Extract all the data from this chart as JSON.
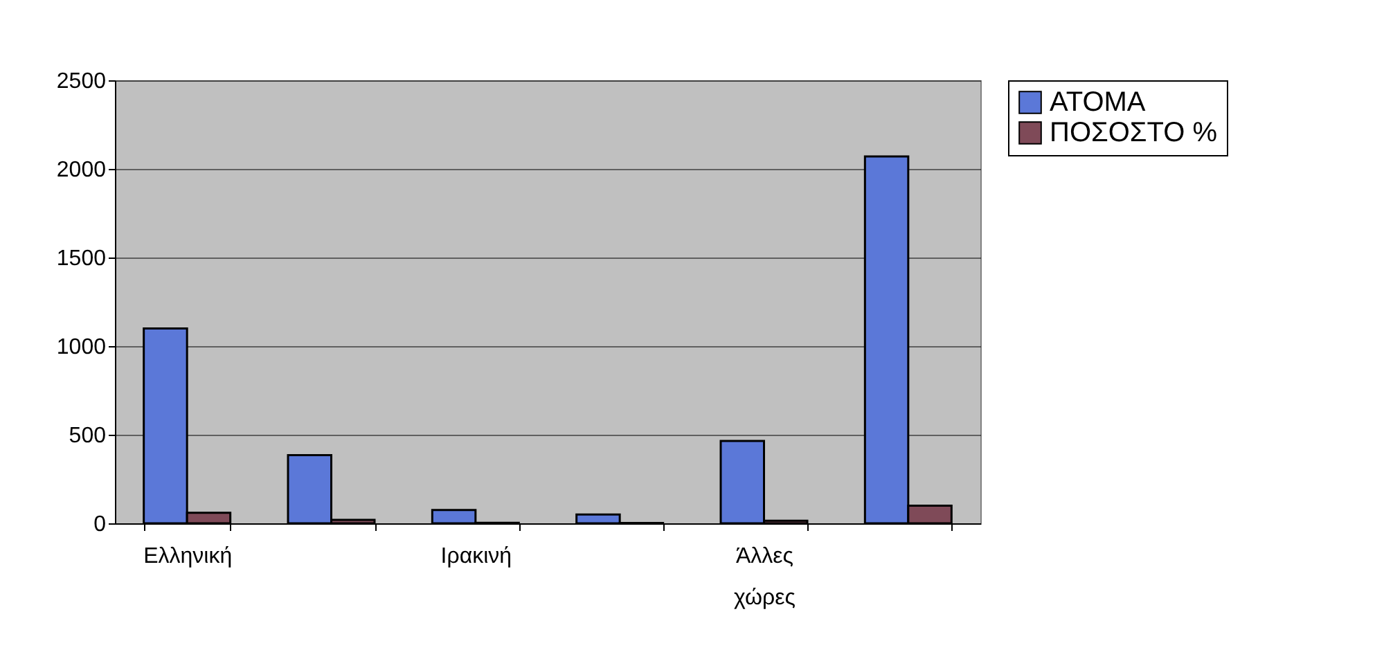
{
  "chart_data": {
    "type": "bar",
    "categories": [
      "Ελληνική",
      null,
      "Ιρακινή",
      null,
      "Άλλες χώρες",
      null
    ],
    "series": [
      {
        "name": "ΑΤΟΜΑ",
        "color": "#5b78d8",
        "values": [
          1100,
          385,
          75,
          50,
          465,
          2070
        ]
      },
      {
        "name": "ΠΟΣΟΣΤΟ %",
        "color": "#7f4a58",
        "values": [
          60,
          20,
          3,
          2,
          15,
          100
        ]
      }
    ],
    "ylim": [
      0,
      2500
    ],
    "yticks": [
      0,
      500,
      1000,
      1500,
      2000,
      2500
    ],
    "grid": "y",
    "legend": "right"
  }
}
